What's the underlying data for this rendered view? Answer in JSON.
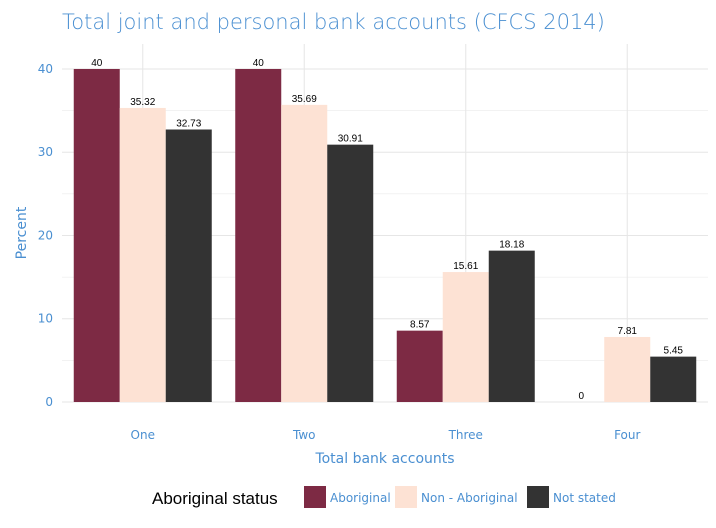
{
  "colors": {
    "accent": "#4a8fd1",
    "grid": "#e6e6e6",
    "series": [
      "#7d2a44",
      "#fde2d4",
      "#333333"
    ]
  },
  "legend": {
    "title": "Aboriginal status"
  },
  "chart_data": {
    "type": "bar",
    "title": "Total joint and personal bank accounts (CFCS 2014)",
    "xlabel": "Total bank accounts",
    "ylabel": "Percent",
    "categories": [
      "One",
      "Two",
      "Three",
      "Four"
    ],
    "ylim": [
      0,
      43
    ],
    "yticks": [
      0,
      10,
      20,
      30,
      40
    ],
    "grid": true,
    "legend_position": "bottom",
    "series": [
      {
        "name": "Aboriginal",
        "values": [
          40,
          40,
          8.57,
          0
        ],
        "labels": [
          "40",
          "40",
          "8.57",
          "0"
        ]
      },
      {
        "name": "Non - Aboriginal",
        "values": [
          35.32,
          35.69,
          15.61,
          7.81
        ],
        "labels": [
          "35.32",
          "35.69",
          "15.61",
          "7.81"
        ]
      },
      {
        "name": "Not stated",
        "values": [
          32.73,
          30.91,
          18.18,
          5.45
        ],
        "labels": [
          "32.73",
          "30.91",
          "18.18",
          "5.45"
        ]
      }
    ]
  }
}
